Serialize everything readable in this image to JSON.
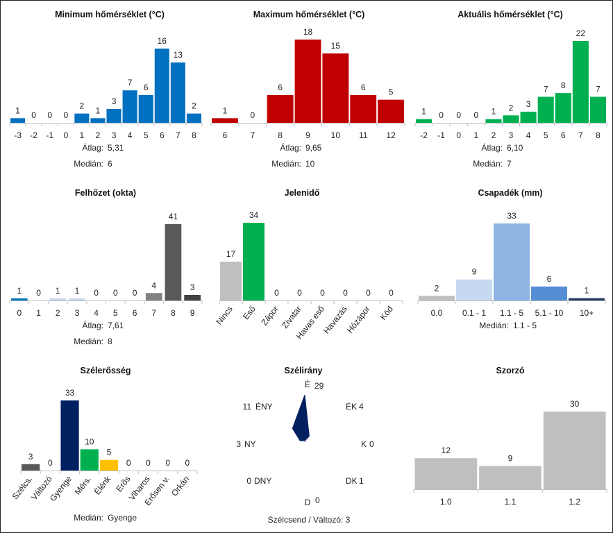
{
  "colors": {
    "blue": "#0070c0",
    "red": "#c00000",
    "green": "#00b050",
    "gray_light": "#bfbfbf",
    "gray_mid": "#808080",
    "gray_dark": "#595959",
    "gray_darker": "#404040",
    "blue_pale": "#c5d9f1",
    "blue_light": "#8db4e2",
    "blue_mid": "#558ed5",
    "blue_dark": "#1f3864",
    "navy": "#002060",
    "yellow": "#ffc000",
    "axis": "#bfbfbf"
  },
  "stat_labels": {
    "mean": "Átlag:",
    "median": "Medián:"
  },
  "chart_data": [
    {
      "id": "tmin",
      "type": "bar",
      "title": "Minimum hőmérséklet (°C)",
      "categories": [
        "-3",
        "-2",
        "-1",
        "0",
        "1",
        "2",
        "3",
        "4",
        "5",
        "6",
        "7",
        "8"
      ],
      "values": [
        1,
        0,
        0,
        0,
        2,
        1,
        3,
        7,
        6,
        16,
        13,
        2
      ],
      "colors": [
        "blue"
      ],
      "mean": "5,31",
      "median": "6"
    },
    {
      "id": "tmax",
      "type": "bar",
      "title": "Maximum hőmérséklet (°C)",
      "categories": [
        "6",
        "7",
        "8",
        "9",
        "10",
        "11",
        "12"
      ],
      "values": [
        1,
        0,
        6,
        18,
        15,
        6,
        5
      ],
      "colors": [
        "red"
      ],
      "mean": "9,65",
      "median": "10"
    },
    {
      "id": "tact",
      "type": "bar",
      "title": "Aktuális hőmérséklet (°C)",
      "categories": [
        "-2",
        "-1",
        "0",
        "1",
        "2",
        "3",
        "4",
        "5",
        "6",
        "7",
        "8"
      ],
      "values": [
        1,
        0,
        0,
        0,
        1,
        2,
        3,
        7,
        8,
        22,
        7
      ],
      "colors": [
        "green"
      ],
      "mean": "6,10",
      "median": "7"
    },
    {
      "id": "cloud",
      "type": "bar",
      "title": "Felhőzet (okta)",
      "categories": [
        "0",
        "1",
        "2",
        "3",
        "4",
        "5",
        "6",
        "7",
        "8",
        "9"
      ],
      "values": [
        1,
        0,
        1,
        1,
        0,
        0,
        0,
        4,
        41,
        3
      ],
      "colors": [
        "blue",
        "blue_pale",
        "blue_pale",
        "blue_pale",
        "gray_mid",
        "gray_mid",
        "gray_mid",
        "gray_mid",
        "gray_dark",
        "gray_darker"
      ],
      "mean": "7,61",
      "median": "8"
    },
    {
      "id": "wx",
      "type": "bar",
      "title": "Jelenidő",
      "categories": [
        "Nincs",
        "Eső",
        "Zápor",
        "Zivatar",
        "Havas eső",
        "Havazás",
        "Hózápor",
        "Köd"
      ],
      "values": [
        17,
        34,
        0,
        0,
        0,
        0,
        0,
        0
      ],
      "colors": [
        "gray_light",
        "green",
        "gray_light",
        "gray_light",
        "gray_light",
        "gray_light",
        "gray_light",
        "gray_light"
      ],
      "rotated_labels": true
    },
    {
      "id": "precip",
      "type": "bar",
      "title": "Csapadék (mm)",
      "categories": [
        "0.0",
        "0.1 - 1",
        "1.1 - 5",
        "5.1 - 10",
        "10+"
      ],
      "values": [
        2,
        9,
        33,
        6,
        1
      ],
      "colors": [
        "gray_light",
        "blue_pale",
        "blue_light",
        "blue_mid",
        "blue_dark"
      ],
      "median": "1.1 - 5"
    },
    {
      "id": "windspd",
      "type": "bar",
      "title": "Szélerősség",
      "categories": [
        "Szélcs.",
        "Változó",
        "Gyenge",
        "Mérs.",
        "Élénk",
        "Erős",
        "Viharos",
        "Erősen v.",
        "Orkán"
      ],
      "values": [
        3,
        0,
        33,
        10,
        5,
        0,
        0,
        0,
        0
      ],
      "colors": [
        "gray_dark",
        "gray_light",
        "navy",
        "green",
        "yellow",
        "gray_light",
        "gray_light",
        "gray_light",
        "gray_light"
      ],
      "rotated_labels": true,
      "median": "Gyenge"
    },
    {
      "id": "winddir",
      "type": "rose",
      "title": "Szélirány",
      "directions": [
        {
          "name": "É",
          "value": 29
        },
        {
          "name": "ÉK",
          "value": 4
        },
        {
          "name": "K",
          "value": 0
        },
        {
          "name": "DK",
          "value": 1
        },
        {
          "name": "D",
          "value": 0
        },
        {
          "name": "DNY",
          "value": 0
        },
        {
          "name": "NY",
          "value": 3
        },
        {
          "name": "ÉNY",
          "value": 11
        }
      ],
      "color": "navy",
      "footer": "Szélcsend / Változó: 3"
    },
    {
      "id": "mult",
      "type": "bar",
      "title": "Szorzó",
      "categories": [
        "1.0",
        "1.1",
        "1.2"
      ],
      "values": [
        12,
        9,
        30
      ],
      "colors": [
        "gray_light"
      ]
    }
  ]
}
